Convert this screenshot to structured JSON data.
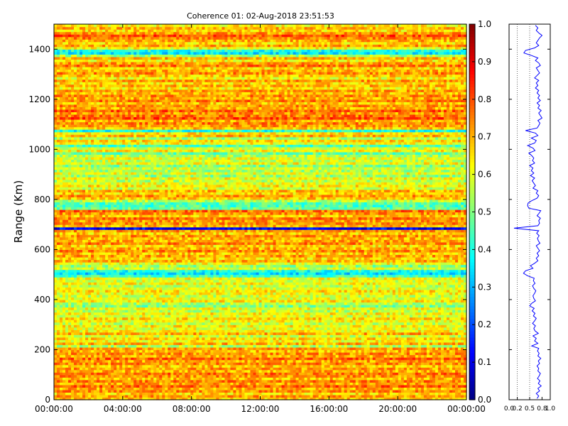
{
  "chart_data": [
    {
      "type": "heatmap",
      "title": "Coherence 01: 02-Aug-2018 23:51:53",
      "xlabel": "",
      "ylabel": "Range (Km)",
      "x_ticks": [
        "00:00:00",
        "04:00:00",
        "08:00:00",
        "12:00:00",
        "16:00:00",
        "20:00:00",
        "00:00:00"
      ],
      "y_ticks": [
        "0",
        "200",
        "400",
        "600",
        "800",
        "1000",
        "1200",
        "1400"
      ],
      "ylim": [
        0,
        1500
      ],
      "value_range": [
        0.0,
        1.0
      ],
      "colormap": "jet",
      "colorbar_ticks": [
        "0.0",
        "0.1",
        "0.2",
        "0.3",
        "0.4",
        "0.5",
        "0.6",
        "0.7",
        "0.8",
        "0.9",
        "1.0"
      ],
      "range_profile": {
        "range_step_km": 10,
        "coherence": [
          0.68,
          0.72,
          0.66,
          0.74,
          0.7,
          0.78,
          0.71,
          0.75,
          0.69,
          0.73,
          0.76,
          0.7,
          0.72,
          0.68,
          0.74,
          0.71,
          0.77,
          0.7,
          0.73,
          0.69,
          0.72,
          0.55,
          0.7,
          0.62,
          0.66,
          0.58,
          0.71,
          0.63,
          0.6,
          0.64,
          0.57,
          0.62,
          0.66,
          0.59,
          0.63,
          0.56,
          0.61,
          0.5,
          0.55,
          0.64,
          0.6,
          0.58,
          0.62,
          0.65,
          0.6,
          0.57,
          0.63,
          0.59,
          0.61,
          0.45,
          0.35,
          0.4,
          0.58,
          0.52,
          0.62,
          0.7,
          0.66,
          0.72,
          0.68,
          0.74,
          0.7,
          0.66,
          0.75,
          0.71,
          0.69,
          0.73,
          0.67,
          0.72,
          0.12,
          0.7,
          0.74,
          0.72,
          0.76,
          0.68,
          0.73,
          0.77,
          0.48,
          0.45,
          0.46,
          0.55,
          0.68,
          0.72,
          0.66,
          0.7,
          0.58,
          0.64,
          0.6,
          0.56,
          0.62,
          0.52,
          0.6,
          0.54,
          0.58,
          0.5,
          0.62,
          0.57,
          0.6,
          0.55,
          0.48,
          0.63,
          0.58,
          0.45,
          0.62,
          0.66,
          0.54,
          0.7,
          0.64,
          0.4,
          0.68,
          0.72,
          0.75,
          0.7,
          0.8,
          0.76,
          0.72,
          0.78,
          0.7,
          0.74,
          0.68,
          0.76,
          0.7,
          0.74,
          0.68,
          0.72,
          0.64,
          0.7,
          0.66,
          0.72,
          0.62,
          0.68,
          0.74,
          0.7,
          0.66,
          0.76,
          0.72,
          0.64,
          0.7,
          0.54,
          0.36,
          0.4,
          0.62,
          0.72,
          0.66,
          0.7,
          0.74,
          0.8,
          0.72,
          0.66,
          0.7,
          0.64
        ]
      }
    }
  ]
}
